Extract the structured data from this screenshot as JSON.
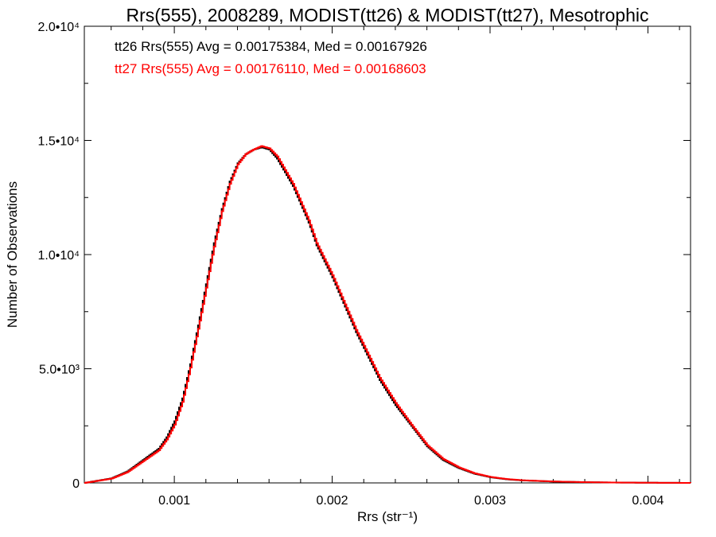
{
  "chart_data": {
    "type": "line",
    "title": "Rrs(555), 2008289, MODIST(tt26) & MODIST(tt27), Mesotrophic",
    "xlabel": "Rrs (str⁻¹)",
    "ylabel": "Number of Observations",
    "xlim": [
      0.00043,
      0.00427
    ],
    "ylim": [
      0,
      20000
    ],
    "x_ticks": [
      {
        "value": 0.001,
        "label": "0.001"
      },
      {
        "value": 0.002,
        "label": "0.002"
      },
      {
        "value": 0.003,
        "label": "0.003"
      },
      {
        "value": 0.004,
        "label": "0.004"
      }
    ],
    "y_ticks": [
      {
        "value": 0,
        "label": "0"
      },
      {
        "value": 5000,
        "label": "5.0•10³"
      },
      {
        "value": 10000,
        "label": "1.0•10⁴"
      },
      {
        "value": 15000,
        "label": "1.5•10⁴"
      },
      {
        "value": 20000,
        "label": "2.0•10⁴"
      }
    ],
    "annotations": [
      {
        "text": "tt26 Rrs(555) Avg = 0.00175384, Med = 0.00167926",
        "color": "#000000"
      },
      {
        "text": "tt27 Rrs(555) Avg = 0.00176110, Med = 0.00168603",
        "color": "#ff0000"
      }
    ],
    "series": [
      {
        "name": "tt26",
        "color": "#000000",
        "x": [
          0.00043,
          0.0006,
          0.0007,
          0.0008,
          0.0009,
          0.00095,
          0.001,
          0.00105,
          0.0011,
          0.00115,
          0.0012,
          0.00125,
          0.0013,
          0.00135,
          0.0014,
          0.00145,
          0.0015,
          0.00155,
          0.0016,
          0.00165,
          0.0017,
          0.00175,
          0.0018,
          0.00185,
          0.0019,
          0.00195,
          0.002,
          0.00205,
          0.0021,
          0.00215,
          0.0022,
          0.00225,
          0.0023,
          0.0024,
          0.0025,
          0.0026,
          0.0027,
          0.0028,
          0.0029,
          0.003,
          0.0031,
          0.0032,
          0.0034,
          0.0036,
          0.0038,
          0.004,
          0.00427
        ],
        "y": [
          0,
          200,
          500,
          1000,
          1500,
          2000,
          2700,
          3700,
          5200,
          6900,
          8700,
          10500,
          12000,
          13200,
          14000,
          14400,
          14600,
          14700,
          14600,
          14200,
          13600,
          13000,
          12200,
          11400,
          10400,
          9700,
          9000,
          8200,
          7400,
          6600,
          5900,
          5200,
          4500,
          3400,
          2500,
          1600,
          1000,
          650,
          400,
          250,
          160,
          110,
          60,
          30,
          15,
          8,
          0
        ]
      },
      {
        "name": "tt27",
        "color": "#ff0000",
        "x": [
          0.00043,
          0.0006,
          0.0007,
          0.0008,
          0.0009,
          0.00095,
          0.001,
          0.00105,
          0.0011,
          0.00115,
          0.0012,
          0.00125,
          0.0013,
          0.00135,
          0.0014,
          0.00145,
          0.0015,
          0.00155,
          0.0016,
          0.00165,
          0.0017,
          0.00175,
          0.0018,
          0.00185,
          0.0019,
          0.00195,
          0.002,
          0.00205,
          0.0021,
          0.00215,
          0.0022,
          0.00225,
          0.0023,
          0.0024,
          0.0025,
          0.0026,
          0.0027,
          0.0028,
          0.0029,
          0.003,
          0.0031,
          0.0032,
          0.0034,
          0.0036,
          0.0038,
          0.004,
          0.00427
        ],
        "y": [
          0,
          190,
          470,
          950,
          1430,
          1900,
          2550,
          3550,
          5050,
          6750,
          8550,
          10350,
          11900,
          13100,
          13950,
          14400,
          14600,
          14750,
          14650,
          14300,
          13700,
          13100,
          12300,
          11500,
          10500,
          9800,
          9100,
          8300,
          7500,
          6700,
          6000,
          5300,
          4600,
          3500,
          2550,
          1650,
          1050,
          680,
          420,
          260,
          170,
          115,
          62,
          32,
          16,
          8,
          0
        ]
      }
    ],
    "grid": false,
    "legend": "none"
  }
}
